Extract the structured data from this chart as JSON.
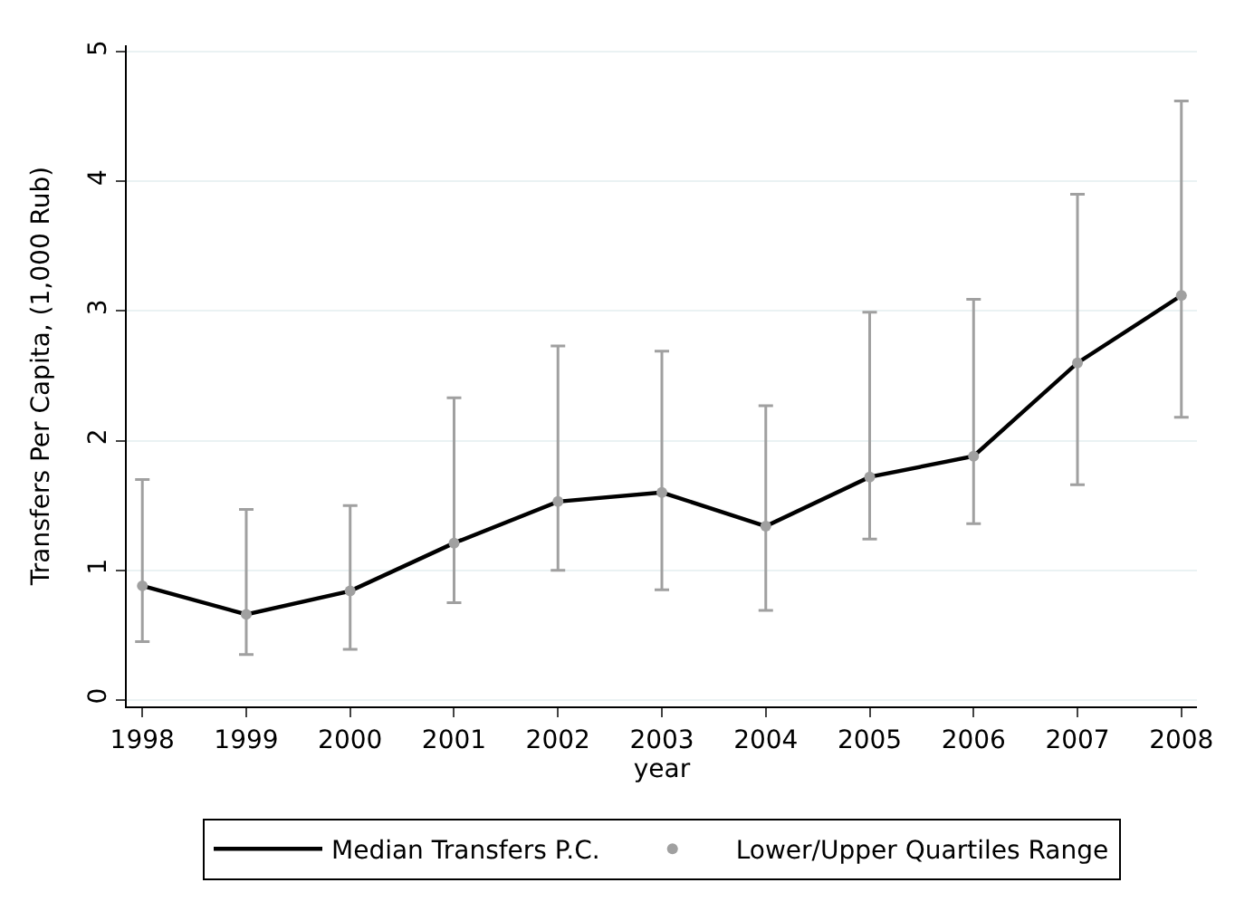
{
  "chart_data": {
    "type": "line",
    "xlabel": "year",
    "ylabel": "Transfers Per Capita, (1,000 Rub)",
    "x": [
      1998,
      1999,
      2000,
      2001,
      2002,
      2003,
      2004,
      2005,
      2006,
      2007,
      2008
    ],
    "series": [
      {
        "name": "Median Transfers P.C.",
        "color": "#000000",
        "line_style": "solid",
        "marker": "none",
        "values": [
          0.88,
          0.66,
          0.84,
          1.21,
          1.53,
          1.6,
          1.34,
          1.72,
          1.88,
          2.6,
          3.12
        ]
      },
      {
        "name": "Lower/Upper Quartiles Range",
        "color": "#a0a0a0",
        "type": "scatter",
        "marker": "circle",
        "values": [
          0.88,
          0.66,
          0.84,
          1.21,
          1.53,
          1.6,
          1.34,
          1.72,
          1.88,
          2.6,
          3.12
        ],
        "errors": [
          [
            0.45,
            1.7
          ],
          [
            0.35,
            1.47
          ],
          [
            0.39,
            1.5
          ],
          [
            0.75,
            2.33
          ],
          [
            1.0,
            2.73
          ],
          [
            0.85,
            2.69
          ],
          [
            0.69,
            2.27
          ],
          [
            1.24,
            2.99
          ],
          [
            1.36,
            3.09
          ],
          [
            1.66,
            3.9
          ],
          [
            2.18,
            4.62
          ]
        ]
      }
    ],
    "xlim": [
      1997.85,
      2008.15
    ],
    "xticks": [
      1998,
      1999,
      2000,
      2001,
      2002,
      2003,
      2004,
      2005,
      2006,
      2007,
      2008
    ],
    "ylim": [
      -0.05,
      5.05
    ],
    "yticks": [
      0,
      1,
      2,
      3,
      4,
      5
    ],
    "grid": "y",
    "legend": "bottom"
  }
}
